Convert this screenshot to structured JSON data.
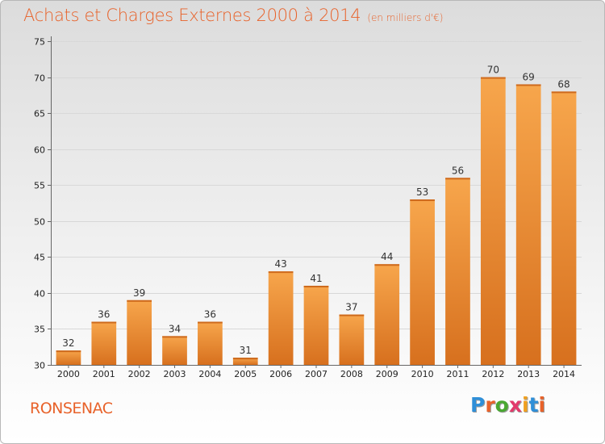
{
  "header": {
    "title": "Achats et Charges Externes 2000 à 2014",
    "subtitle": "(en milliers d'€)"
  },
  "footer": {
    "commune": "RONSENAC",
    "brand_letters": [
      "P",
      "r",
      "o",
      "x",
      "i",
      "t",
      "i"
    ],
    "brand_colors": [
      "#2f8fd8",
      "#e8622a",
      "#4aa832",
      "#e23a6c",
      "#f0a020",
      "#2f8fd8",
      "#e8622a"
    ]
  },
  "colors": {
    "bar": "#ee8a2f",
    "bar_light": "#f7a64c",
    "bar_dark": "#d7701e",
    "accent": "#e8622a"
  },
  "chart_data": {
    "type": "bar",
    "title": "Achats et Charges Externes 2000 à 2014",
    "subtitle": "(en milliers d'€)",
    "categories": [
      "2000",
      "2001",
      "2002",
      "2003",
      "2004",
      "2005",
      "2006",
      "2007",
      "2008",
      "2009",
      "2010",
      "2011",
      "2012",
      "2013",
      "2014"
    ],
    "values": [
      32,
      36,
      39,
      34,
      36,
      31,
      43,
      41,
      37,
      44,
      53,
      56,
      70,
      69,
      68
    ],
    "xlabel": "",
    "ylabel": "",
    "ylim": [
      30,
      75
    ],
    "yticks": [
      30,
      35,
      40,
      45,
      50,
      55,
      60,
      65,
      70,
      75
    ],
    "grid": true,
    "legend": "none"
  }
}
